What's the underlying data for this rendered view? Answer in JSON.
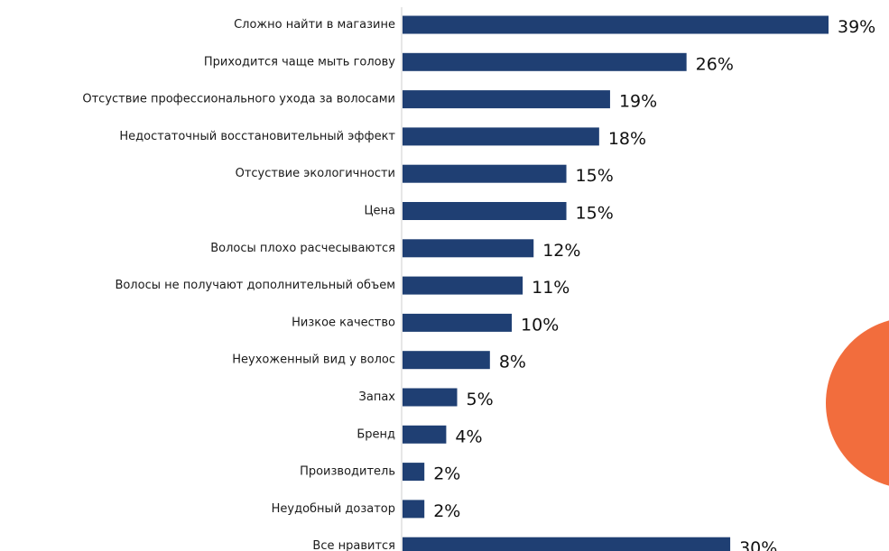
{
  "chart_data": {
    "type": "bar",
    "orientation": "horizontal",
    "categories": [
      "Сложно найти в магазине",
      "Приходится чаще мыть голову",
      "Отсуствие профессионального ухода за волосами",
      "Недостаточный восстановительный эффект",
      "Отсуствие экологичности",
      "Цена",
      "Волосы плохо расчесываются",
      "Волосы не получают дополнительный объем",
      "Низкое качество",
      "Неухоженный вид у волос",
      "Запах",
      "Бренд",
      "Производитель",
      "Неудобный дозатор",
      "Все нравится"
    ],
    "values": [
      39,
      26,
      19,
      18,
      15,
      15,
      12,
      11,
      10,
      8,
      5,
      4,
      2,
      2,
      30
    ],
    "value_labels": [
      "39%",
      "26%",
      "19%",
      "18%",
      "15%",
      "15%",
      "12%",
      "11%",
      "10%",
      "8%",
      "5%",
      "4%",
      "2%",
      "2%",
      "30%"
    ],
    "title": "",
    "xlabel": "",
    "ylabel": "",
    "xlim": [
      0,
      39
    ],
    "grid": false,
    "legend": "none",
    "bar_color": "#1f3f73",
    "badge_color": "#f26d3d"
  }
}
